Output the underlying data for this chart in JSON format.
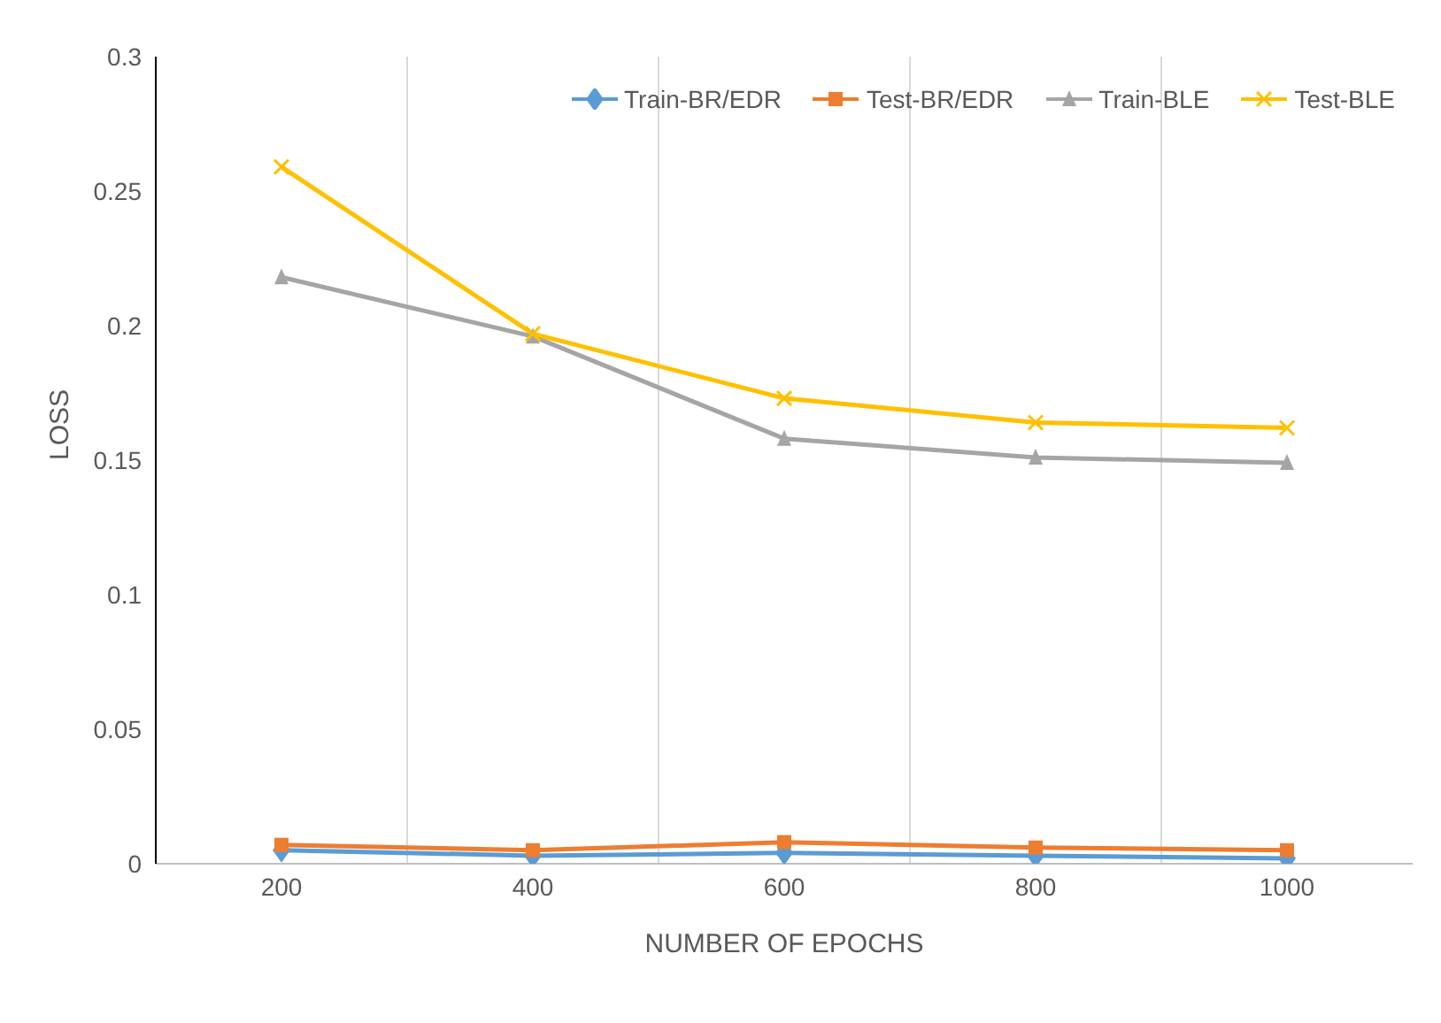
{
  "chart_data": {
    "type": "line",
    "xlabel": "NUMBER OF EPOCHS",
    "ylabel": "LOSS",
    "categories": [
      "200",
      "400",
      "600",
      "800",
      "1000"
    ],
    "series": [
      {
        "name": "Train-BR/EDR",
        "color": "#5b9bd5",
        "marker": "diamond",
        "values": [
          0.005,
          0.003,
          0.004,
          0.003,
          0.002
        ]
      },
      {
        "name": "Test-BR/EDR",
        "color": "#ed7d31",
        "marker": "square",
        "values": [
          0.007,
          0.005,
          0.008,
          0.006,
          0.005
        ]
      },
      {
        "name": "Train-BLE",
        "color": "#a5a5a5",
        "marker": "triangle",
        "values": [
          0.218,
          0.196,
          0.158,
          0.151,
          0.149
        ]
      },
      {
        "name": "Test-BLE",
        "color": "#ffc000",
        "marker": "cross",
        "values": [
          0.259,
          0.197,
          0.173,
          0.164,
          0.162
        ]
      }
    ],
    "ylim": [
      0,
      0.3
    ],
    "yticks": [
      0,
      0.05,
      0.1,
      0.15,
      0.2,
      0.25,
      0.3
    ],
    "grid": "x",
    "legend": "top right"
  }
}
